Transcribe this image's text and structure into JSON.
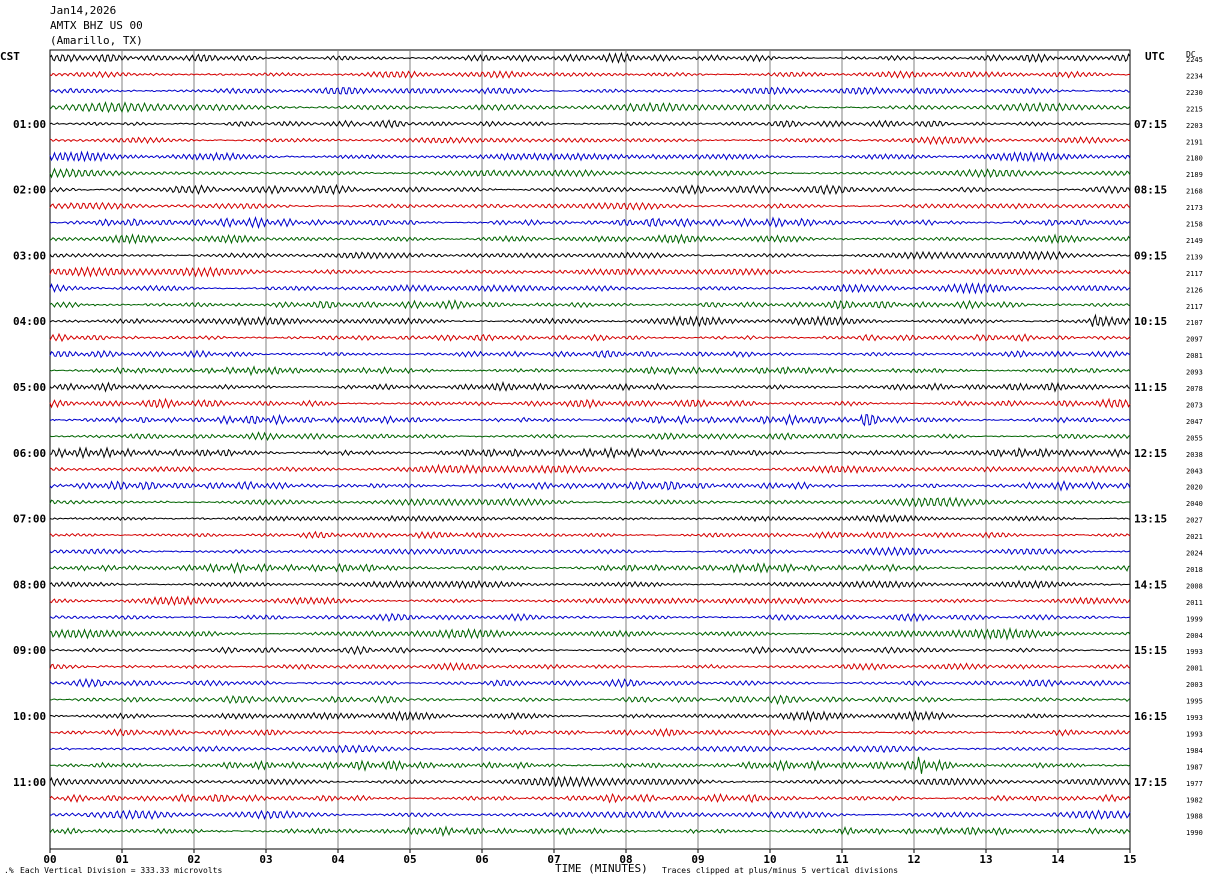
{
  "header": {
    "date": "Jan14,2026",
    "station": "AMTX BHZ US 00",
    "location": "(Amarillo, TX)"
  },
  "left_zone": "CST",
  "right_zone": "UTC",
  "dc_label": "DC",
  "footer": {
    "scale_note": "Each Vertical Division =  333.33 microvolts",
    "xlabel": "TIME (MINUTES)",
    "clip_note": "Traces clipped at plus/minus 5 vertical divisions"
  },
  "colors": {
    "trace_cycle": [
      "#000000",
      "#d40000",
      "#0000cc",
      "#006400"
    ],
    "grid": "#808080"
  },
  "chart_data": {
    "type": "line",
    "title": "AMTX BHZ US 00",
    "xlabel": "TIME (MINUTES)",
    "xlim": [
      0,
      15
    ],
    "x_ticks": [
      "00",
      "01",
      "02",
      "03",
      "04",
      "05",
      "06",
      "07",
      "08",
      "09",
      "10",
      "11",
      "12",
      "13",
      "14",
      "15"
    ],
    "grid": true,
    "traces_per_hour": 4,
    "trace_count": 48,
    "left_hour_labels": [
      "01:00",
      "02:00",
      "03:00",
      "04:00",
      "05:00",
      "06:00",
      "07:00",
      "08:00",
      "09:00",
      "10:00",
      "11:00"
    ],
    "right_hour_labels": [
      "07:15",
      "08:15",
      "09:15",
      "10:15",
      "11:15",
      "12:15",
      "13:15",
      "14:15",
      "15:15",
      "16:15",
      "17:15"
    ],
    "dc_offsets": [
      "2245",
      "2234",
      "2230",
      "2215",
      "2203",
      "2191",
      "2180",
      "2189",
      "2168",
      "2173",
      "2158",
      "2149",
      "2139",
      "2117",
      "2126",
      "2117",
      "2107",
      "2097",
      "2081",
      "2093",
      "2078",
      "2073",
      "2047",
      "2055",
      "2038",
      "2043",
      "2020",
      "2040",
      "2027",
      "2021",
      "2024",
      "2018",
      "2008",
      "2011",
      "1999",
      "2004",
      "1993",
      "2001",
      "2003",
      "1995",
      "1993",
      "1993",
      "1984",
      "1987",
      "1977",
      "1982",
      "1988",
      "1990"
    ],
    "events": [
      {
        "trace": 22,
        "minute": 11.3,
        "amp": 1.8
      },
      {
        "trace": 43,
        "minute": 12.1,
        "amp": 1.6
      },
      {
        "trace": 16,
        "minute": 14.5,
        "amp": 1.2
      }
    ]
  }
}
